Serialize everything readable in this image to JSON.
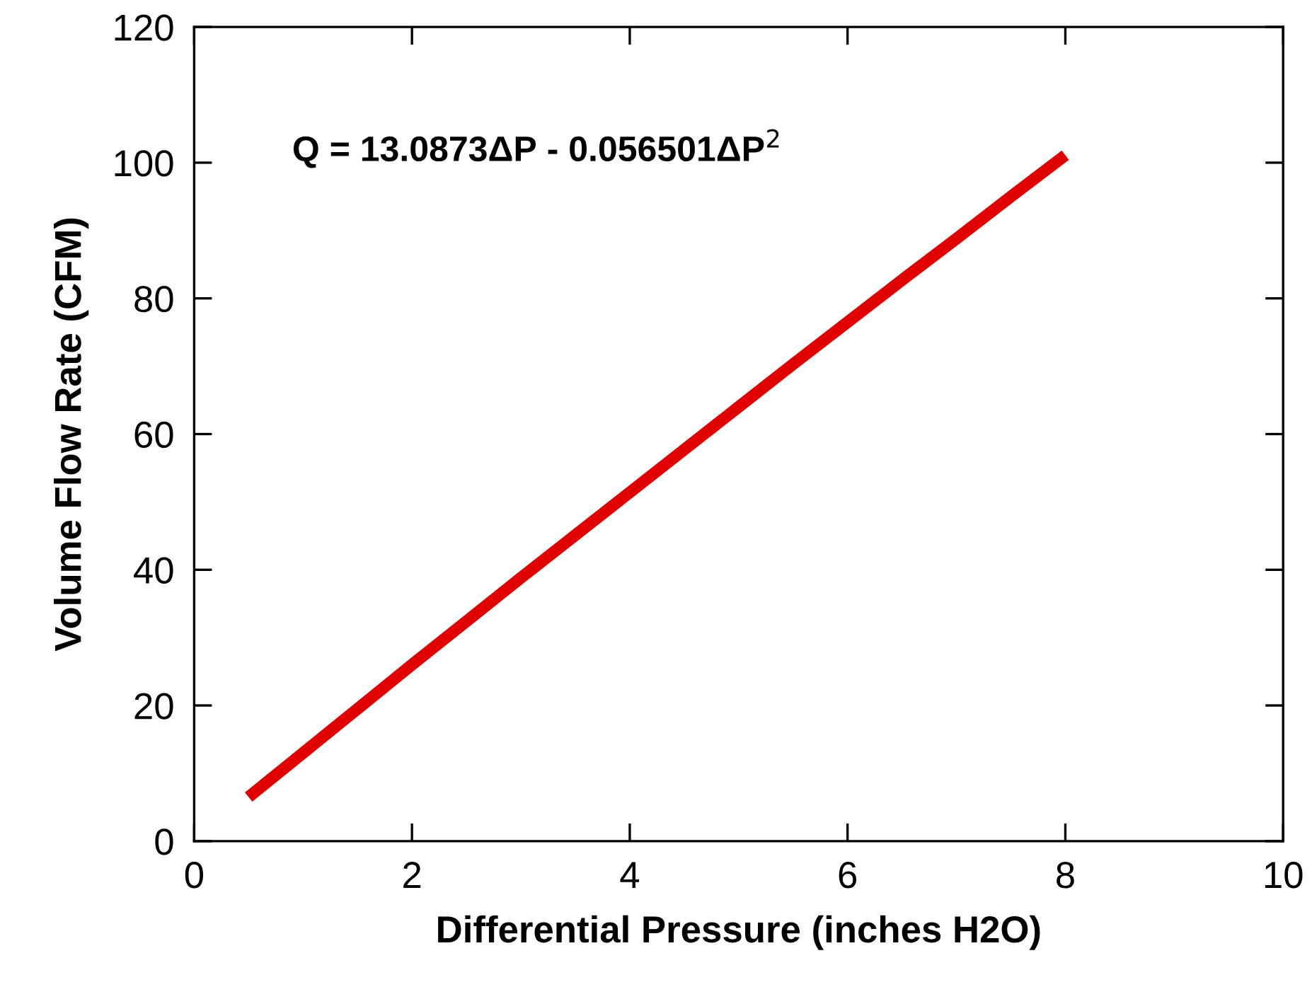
{
  "chart_data": {
    "type": "line",
    "xlabel": "Differential Pressure (inches H2O)",
    "ylabel": "Volume Flow Rate (CFM)",
    "annotations": [
      "Q = 13.0873ΔP - 0.056501ΔP$^{2}$"
    ],
    "x": [
      0.5,
      1,
      1.5,
      2,
      2.5,
      3,
      3.5,
      4,
      4.5,
      5,
      5.5,
      6,
      6.5,
      7,
      7.5,
      8
    ],
    "series": [
      {
        "color": "#e00000",
        "values": [
          6.5,
          13.0,
          19.5,
          26.0,
          32.4,
          38.8,
          45.1,
          51.4,
          57.7,
          64.0,
          70.3,
          76.5,
          82.7,
          88.8,
          95.0,
          101.1
        ]
      }
    ],
    "xlim": [
      0,
      10
    ],
    "xticks": [
      0,
      2,
      4,
      6,
      8,
      10
    ],
    "ylim": [
      0,
      120
    ],
    "yticks": [
      0,
      20,
      40,
      60,
      80,
      100,
      120
    ],
    "grid": false,
    "legend": false,
    "marker": "none",
    "line_style": "solid"
  }
}
